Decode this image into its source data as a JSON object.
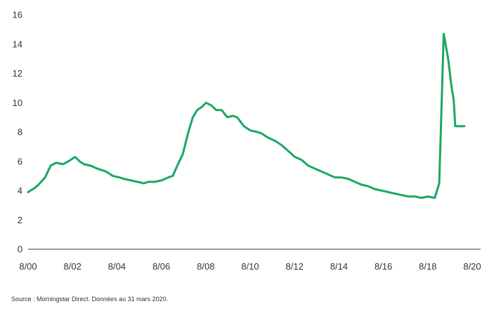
{
  "chart_data": {
    "type": "line",
    "title": "",
    "xlabel": "",
    "ylabel": "",
    "ylim": [
      0,
      16
    ],
    "yticks": [
      "0",
      "2",
      "4",
      "6",
      "8",
      "10",
      "12",
      "14",
      "16"
    ],
    "xlim": [
      2000.583,
      2020.583
    ],
    "xticks": [
      "8/00",
      "8/02",
      "8/04",
      "8/06",
      "8/08",
      "8/10",
      "8/12",
      "8/14",
      "8/16",
      "8/18",
      "8/20"
    ],
    "grid": false,
    "legend": "none",
    "series": [
      {
        "color": "#1aa862",
        "x": [
          2000.583,
          2000.9,
          2001.05,
          2001.35,
          2001.6,
          2001.85,
          2002.15,
          2002.4,
          2002.7,
          2002.9,
          2003.1,
          2003.4,
          2003.7,
          2003.9,
          2004.1,
          2004.4,
          2004.7,
          2004.9,
          2005.2,
          2005.5,
          2005.8,
          2006.0,
          2006.3,
          2006.6,
          2006.9,
          2007.1,
          2007.3,
          2007.55,
          2007.8,
          2008.0,
          2008.2,
          2008.4,
          2008.6,
          2008.85,
          2009.05,
          2009.3,
          2009.55,
          2009.8,
          2010.0,
          2010.1,
          2010.3,
          2010.6,
          2010.9,
          2011.1,
          2011.4,
          2011.7,
          2012.0,
          2012.3,
          2012.6,
          2012.9,
          2013.2,
          2013.5,
          2013.8,
          2014.1,
          2014.4,
          2014.7,
          2015.0,
          2015.3,
          2015.6,
          2015.9,
          2016.2,
          2016.5,
          2016.8,
          2017.1,
          2017.4,
          2017.7,
          2018.0,
          2018.3,
          2018.6,
          2018.9,
          2019.1,
          2019.3,
          2019.5,
          2019.65,
          2019.75,
          2019.82,
          2019.9,
          2020.0,
          2020.08,
          2020.15,
          2020.23
        ],
        "values": [
          3.9,
          4.2,
          4.4,
          4.9,
          5.7,
          5.9,
          5.8,
          6.0,
          6.3,
          6.0,
          5.8,
          5.7,
          5.5,
          5.4,
          5.3,
          5.0,
          4.9,
          4.8,
          4.7,
          4.6,
          4.5,
          4.6,
          4.6,
          4.7,
          4.9,
          5.0,
          5.7,
          6.5,
          8.0,
          9.0,
          9.5,
          9.7,
          10.0,
          9.8,
          9.5,
          9.5,
          9.0,
          9.1,
          9.0,
          8.8,
          8.4,
          8.1,
          8.0,
          7.9,
          7.6,
          7.4,
          7.1,
          6.7,
          6.3,
          6.1,
          5.7,
          5.5,
          5.3,
          5.1,
          4.9,
          4.9,
          4.8,
          4.6,
          4.4,
          4.3,
          4.1,
          4.0,
          3.9,
          3.8,
          3.7,
          3.6,
          3.6,
          3.5,
          3.6,
          3.5,
          4.5,
          14.7,
          13.0,
          11.1,
          10.2,
          8.4,
          8.4,
          8.4,
          8.4,
          8.4,
          8.4
        ]
      }
    ]
  },
  "footer": {
    "source": "Source : Morningstar Direct.  Données au 31 mars 2020."
  }
}
